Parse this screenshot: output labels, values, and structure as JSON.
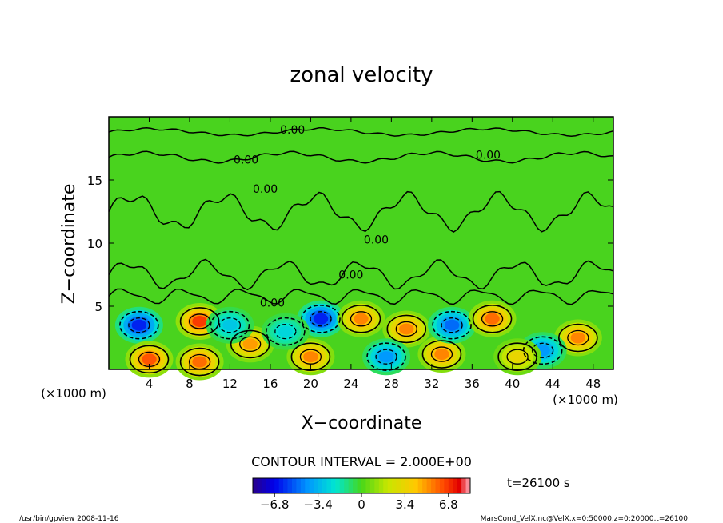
{
  "chart_data": {
    "type": "heatmap",
    "title": "zonal velocity",
    "xlabel": "X−coordinate",
    "ylabel": "Z−coordinate",
    "x_unit": "(×1000 m)",
    "y_unit": "(×1000 m)",
    "xlim": [
      0,
      50
    ],
    "ylim": [
      0,
      20
    ],
    "x_ticks": [
      "4",
      "8",
      "12",
      "16",
      "20",
      "24",
      "28",
      "32",
      "36",
      "40",
      "44",
      "48"
    ],
    "y_ticks": [
      "5",
      "10",
      "15"
    ],
    "contour_labels": [
      "0.00",
      "0.00",
      "0.00",
      "0.00",
      "0.00",
      "0.00",
      "0.00"
    ],
    "contour_interval_text": "CONTOUR INTERVAL = 2.000E+00",
    "time_text": "t=26100 s",
    "colorbar": {
      "min": -8.5,
      "max": 8.5,
      "tick_labels": [
        "−6.8",
        "−3.4",
        "0",
        "3.4",
        "6.8"
      ],
      "tick_values": [
        -6.8,
        -3.4,
        0,
        3.4,
        6.8
      ]
    },
    "cells": [
      {
        "x": 3,
        "z": 3.5,
        "u": -7.5
      },
      {
        "x": 9,
        "z": 3.8,
        "u": 8.0
      },
      {
        "x": 14,
        "z": 2.0,
        "u": 6.0
      },
      {
        "x": 4,
        "z": 0.8,
        "u": 7.5
      },
      {
        "x": 9,
        "z": 0.6,
        "u": 7.0
      },
      {
        "x": 21,
        "z": 4.0,
        "u": -7.5
      },
      {
        "x": 20,
        "z": 1.0,
        "u": 6.5
      },
      {
        "x": 25,
        "z": 4.0,
        "u": 6.5
      },
      {
        "x": 29.5,
        "z": 3.2,
        "u": 6.5
      },
      {
        "x": 27.5,
        "z": 1.0,
        "u": -5.0
      },
      {
        "x": 33,
        "z": 1.2,
        "u": 6.5
      },
      {
        "x": 34,
        "z": 3.5,
        "u": -6.0
      },
      {
        "x": 38,
        "z": 4.0,
        "u": 7.0
      },
      {
        "x": 46.5,
        "z": 2.5,
        "u": 6.5
      },
      {
        "x": 43,
        "z": 1.5,
        "u": -5.0
      },
      {
        "x": 40.5,
        "z": 1.0,
        "u": 4.0
      },
      {
        "x": 12,
        "z": 3.5,
        "u": -3.5
      },
      {
        "x": 17.5,
        "z": 3.0,
        "u": -3.0
      }
    ]
  },
  "footer": {
    "left": "/usr/bin/gpview   2008-11-16",
    "right": "MarsCond_VelX.nc@VelX,x=0:50000,z=0:20000,t=26100"
  }
}
